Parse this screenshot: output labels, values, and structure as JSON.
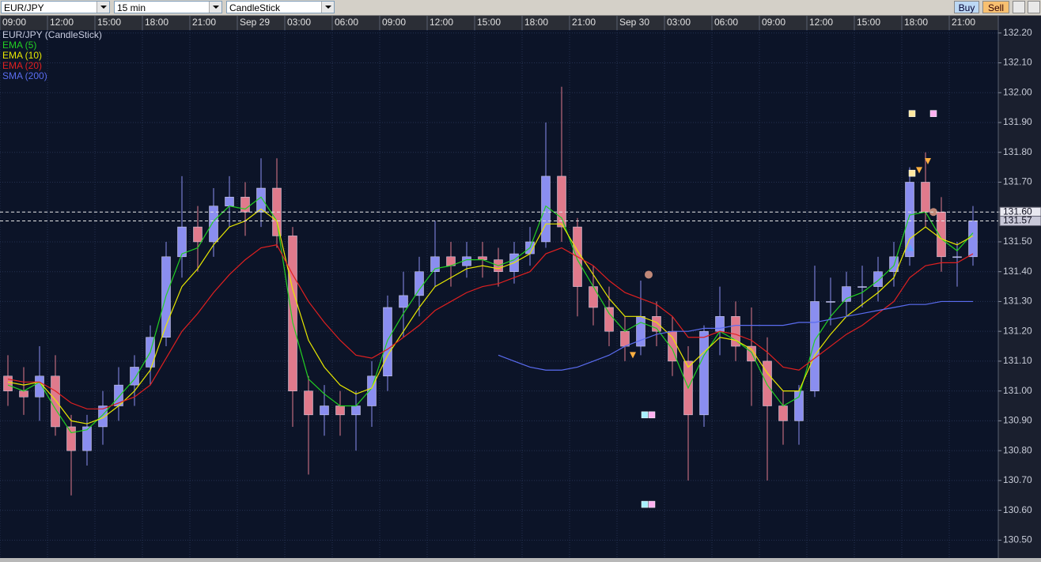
{
  "toolbar": {
    "symbol": "EUR/JPY",
    "interval": "15 min",
    "chart_type": "CandleStick",
    "buy": "Buy",
    "sell": "Sell"
  },
  "chart_data": {
    "type": "candlestick",
    "title": "EUR/JPY (CandleStick)",
    "x": [
      0.5,
      1.5,
      2.5,
      3.5,
      4.5,
      5.5,
      6.5,
      7.5,
      8.5,
      9.5,
      10.5,
      11.5,
      12.5,
      13.5,
      14.5,
      15.5,
      16.5,
      17.5,
      18.5,
      19.5,
      20.5,
      21.5,
      22.5,
      23.5,
      24.5,
      25.5,
      26.5,
      27.5,
      28.5,
      29.5,
      30.5,
      31.5,
      32.5,
      33.5,
      34.5,
      35.5,
      36.5,
      37.5,
      38.5,
      39.5,
      40.5,
      41.5,
      42.5,
      43.5,
      44.5,
      45.5,
      46.5,
      47.5,
      48.5,
      49.5,
      50.5,
      51.5,
      52.5,
      53.5,
      54.5,
      55.5,
      56.5,
      57.5,
      58.5,
      59.5,
      60.5,
      61.5
    ],
    "open": [
      131.05,
      131.0,
      130.98,
      131.05,
      130.88,
      130.8,
      130.88,
      130.95,
      131.02,
      131.08,
      131.18,
      131.45,
      131.55,
      131.5,
      131.62,
      131.65,
      131.6,
      131.68,
      131.52,
      131.0,
      130.92,
      130.95,
      130.92,
      130.95,
      131.05,
      131.28,
      131.32,
      131.4,
      131.45,
      131.42,
      131.45,
      131.44,
      131.4,
      131.46,
      131.5,
      131.72,
      131.55,
      131.35,
      131.28,
      131.2,
      131.15,
      131.25,
      131.2,
      131.1,
      130.92,
      131.2,
      131.25,
      131.15,
      131.1,
      130.95,
      130.9,
      131.0,
      131.3,
      131.3,
      131.35,
      131.35,
      131.4,
      131.45,
      131.7,
      131.6,
      131.45,
      131.45
    ],
    "high": [
      131.12,
      131.08,
      131.15,
      131.12,
      130.92,
      130.92,
      131.0,
      131.08,
      131.12,
      131.22,
      131.5,
      131.72,
      131.62,
      131.68,
      131.72,
      131.7,
      131.78,
      131.78,
      131.55,
      131.05,
      131.02,
      131.0,
      131.0,
      131.1,
      131.32,
      131.4,
      131.45,
      131.57,
      131.5,
      131.5,
      131.5,
      131.48,
      131.5,
      131.55,
      131.9,
      132.02,
      131.58,
      131.42,
      131.35,
      131.25,
      131.37,
      131.3,
      131.25,
      131.15,
      131.22,
      131.35,
      131.3,
      131.28,
      131.18,
      131.0,
      131.02,
      131.42,
      131.38,
      131.4,
      131.42,
      131.45,
      131.5,
      131.75,
      131.8,
      131.65,
      131.5,
      131.62
    ],
    "low": [
      130.95,
      130.92,
      130.9,
      130.85,
      130.65,
      130.75,
      130.82,
      130.9,
      130.95,
      131.02,
      131.15,
      131.38,
      131.4,
      131.45,
      131.55,
      131.52,
      131.55,
      131.48,
      130.88,
      130.72,
      130.85,
      130.85,
      130.8,
      130.88,
      131.0,
      131.18,
      131.25,
      131.35,
      131.35,
      131.38,
      131.38,
      131.35,
      131.36,
      131.42,
      131.48,
      131.5,
      131.25,
      131.22,
      131.15,
      131.1,
      131.12,
      131.15,
      131.05,
      130.7,
      130.88,
      131.12,
      131.1,
      130.95,
      130.7,
      130.82,
      130.82,
      130.98,
      131.22,
      131.25,
      131.28,
      131.3,
      131.35,
      131.42,
      131.55,
      131.4,
      131.35,
      131.42
    ],
    "close": [
      131.0,
      130.98,
      131.05,
      130.88,
      130.8,
      130.88,
      130.95,
      131.02,
      131.08,
      131.18,
      131.45,
      131.55,
      131.5,
      131.62,
      131.65,
      131.6,
      131.68,
      131.52,
      131.0,
      130.92,
      130.95,
      130.92,
      130.95,
      131.05,
      131.28,
      131.32,
      131.4,
      131.45,
      131.42,
      131.45,
      131.44,
      131.4,
      131.46,
      131.5,
      131.72,
      131.55,
      131.35,
      131.28,
      131.2,
      131.15,
      131.25,
      131.2,
      131.1,
      130.92,
      131.2,
      131.25,
      131.15,
      131.1,
      130.95,
      130.9,
      131.0,
      131.3,
      131.3,
      131.35,
      131.35,
      131.4,
      131.45,
      131.7,
      131.6,
      131.45,
      131.45,
      131.57
    ],
    "up_color": "#8a8ef0",
    "down_color": "#e07a8c",
    "series": [
      {
        "name": "EMA (5)",
        "color": "#22d022",
        "values": [
          131.02,
          131.0,
          131.03,
          130.94,
          130.86,
          130.87,
          130.92,
          130.98,
          131.04,
          131.13,
          131.32,
          131.46,
          131.48,
          131.57,
          131.62,
          131.61,
          131.65,
          131.57,
          131.23,
          131.04,
          130.99,
          130.95,
          130.95,
          131.01,
          131.17,
          131.26,
          131.34,
          131.41,
          131.42,
          131.44,
          131.44,
          131.42,
          131.44,
          131.48,
          131.62,
          131.58,
          131.44,
          131.35,
          131.26,
          131.2,
          131.23,
          131.21,
          131.14,
          131.01,
          131.12,
          131.2,
          131.17,
          131.13,
          131.02,
          130.95,
          130.98,
          131.17,
          131.25,
          131.31,
          131.33,
          131.37,
          131.42,
          131.59,
          131.6,
          131.51,
          131.47,
          131.53
        ]
      },
      {
        "name": "EMA (10)",
        "color": "#e8e800",
        "values": [
          131.03,
          131.02,
          131.03,
          130.97,
          130.9,
          130.89,
          130.91,
          130.95,
          131.0,
          131.07,
          131.22,
          131.35,
          131.41,
          131.49,
          131.55,
          131.57,
          131.61,
          131.57,
          131.34,
          131.17,
          131.08,
          131.02,
          130.99,
          131.01,
          131.12,
          131.2,
          131.28,
          131.35,
          131.38,
          131.41,
          131.42,
          131.41,
          131.43,
          131.46,
          131.56,
          131.56,
          131.47,
          131.39,
          131.31,
          131.25,
          131.25,
          131.23,
          131.18,
          131.08,
          131.13,
          131.18,
          131.17,
          131.14,
          131.06,
          131.0,
          131.0,
          131.12,
          131.19,
          131.25,
          131.29,
          131.33,
          131.38,
          131.51,
          131.55,
          131.51,
          131.49,
          131.52
        ]
      },
      {
        "name": "EMA (20)",
        "color": "#e02020",
        "values": [
          131.04,
          131.03,
          131.03,
          131.0,
          130.96,
          130.94,
          130.94,
          130.96,
          130.98,
          131.02,
          131.11,
          131.2,
          131.26,
          131.33,
          131.39,
          131.44,
          131.48,
          131.49,
          131.39,
          131.3,
          131.23,
          131.17,
          131.12,
          131.11,
          131.14,
          131.18,
          131.22,
          131.27,
          131.3,
          131.33,
          131.35,
          131.36,
          131.38,
          131.4,
          131.46,
          131.48,
          131.45,
          131.42,
          131.37,
          131.33,
          131.31,
          131.29,
          131.25,
          131.18,
          131.18,
          131.2,
          131.19,
          131.17,
          131.13,
          131.08,
          131.07,
          131.11,
          131.15,
          131.19,
          131.22,
          131.26,
          131.3,
          131.38,
          131.42,
          131.43,
          131.43,
          131.46
        ]
      },
      {
        "name": "SMA (200)",
        "color": "#5a6cf0",
        "values": [
          null,
          null,
          null,
          null,
          null,
          null,
          null,
          null,
          null,
          null,
          null,
          null,
          null,
          null,
          null,
          null,
          null,
          null,
          null,
          null,
          null,
          null,
          null,
          null,
          null,
          null,
          null,
          null,
          null,
          null,
          null,
          131.12,
          131.1,
          131.08,
          131.07,
          131.07,
          131.08,
          131.1,
          131.12,
          131.15,
          131.17,
          131.19,
          131.2,
          131.2,
          131.21,
          131.21,
          131.22,
          131.22,
          131.22,
          131.22,
          131.23,
          131.23,
          131.24,
          131.25,
          131.26,
          131.27,
          131.28,
          131.29,
          131.29,
          131.3,
          131.3,
          131.3
        ]
      }
    ],
    "xlim": [
      0,
      63.1
    ],
    "xticks": [
      {
        "value": 0,
        "label": "09:00"
      },
      {
        "value": 3,
        "label": "12:00"
      },
      {
        "value": 6,
        "label": "15:00"
      },
      {
        "value": 9,
        "label": "18:00"
      },
      {
        "value": 12,
        "label": "21:00"
      },
      {
        "value": 15,
        "label": "Sep 29"
      },
      {
        "value": 18,
        "label": "03:00"
      },
      {
        "value": 21,
        "label": "06:00"
      },
      {
        "value": 24,
        "label": "09:00"
      },
      {
        "value": 27,
        "label": "12:00"
      },
      {
        "value": 30,
        "label": "15:00"
      },
      {
        "value": 33,
        "label": "18:00"
      },
      {
        "value": 36,
        "label": "21:00"
      },
      {
        "value": 39,
        "label": "Sep 30"
      },
      {
        "value": 42,
        "label": "03:00"
      },
      {
        "value": 45,
        "label": "06:00"
      },
      {
        "value": 48,
        "label": "09:00"
      },
      {
        "value": 51,
        "label": "12:00"
      },
      {
        "value": 54,
        "label": "15:00"
      },
      {
        "value": 57,
        "label": "18:00"
      },
      {
        "value": 60,
        "label": "21:00"
      }
    ],
    "ylim": [
      130.44,
      132.21
    ],
    "yticks": [
      {
        "value": 130.5,
        "label": "130.50"
      },
      {
        "value": 130.6,
        "label": "130.60"
      },
      {
        "value": 130.7,
        "label": "130.70"
      },
      {
        "value": 130.8,
        "label": "130.80"
      },
      {
        "value": 130.9,
        "label": "130.90"
      },
      {
        "value": 131.0,
        "label": "131.00"
      },
      {
        "value": 131.1,
        "label": "131.10"
      },
      {
        "value": 131.2,
        "label": "131.20"
      },
      {
        "value": 131.3,
        "label": "131.30"
      },
      {
        "value": 131.4,
        "label": "131.40"
      },
      {
        "value": 131.5,
        "label": "131.50"
      },
      {
        "value": 131.6,
        "label": "131.60"
      },
      {
        "value": 131.7,
        "label": "131.70"
      },
      {
        "value": 131.8,
        "label": "131.80"
      },
      {
        "value": 131.9,
        "label": "131.90"
      },
      {
        "value": 132.0,
        "label": "132.00"
      },
      {
        "value": 132.1,
        "label": "132.10"
      },
      {
        "value": 132.2,
        "label": "132.20"
      }
    ],
    "price_lines": [
      {
        "value": 131.6,
        "label": "131.60"
      },
      {
        "value": 131.57,
        "label": "131.57"
      }
    ],
    "markers": [
      {
        "shape": "square",
        "color": "#a8f0ff",
        "x": 40.75,
        "y": 130.92
      },
      {
        "shape": "square",
        "color": "#ffb0f0",
        "x": 41.2,
        "y": 130.92
      },
      {
        "shape": "square",
        "color": "#a8f0ff",
        "x": 40.75,
        "y": 130.62
      },
      {
        "shape": "square",
        "color": "#ffb0f0",
        "x": 41.2,
        "y": 130.62
      },
      {
        "shape": "square",
        "color": "#ffe8a0",
        "x": 57.65,
        "y": 131.93
      },
      {
        "shape": "square",
        "color": "#ffb0f0",
        "x": 59.0,
        "y": 131.93
      },
      {
        "shape": "square",
        "color": "#ffe8a0",
        "x": 57.65,
        "y": 131.73
      },
      {
        "shape": "triangle-down",
        "color": "#ffb040",
        "x": 58.1,
        "y": 131.74
      },
      {
        "shape": "triangle-down",
        "color": "#ffb040",
        "x": 58.65,
        "y": 131.77
      },
      {
        "shape": "triangle-down",
        "color": "#ffb040",
        "x": 40.0,
        "y": 131.12
      },
      {
        "shape": "triangle-up",
        "color": "#60a0ff",
        "x": 57.55,
        "y": 131.48
      },
      {
        "shape": "circle",
        "color": "#c08878",
        "x": 41.0,
        "y": 131.39
      },
      {
        "shape": "circle",
        "color": "#c08878",
        "x": 59.0,
        "y": 131.6
      }
    ],
    "grid": true
  }
}
